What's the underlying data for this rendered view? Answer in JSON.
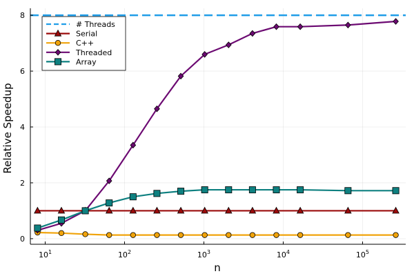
{
  "chart_data": {
    "type": "line",
    "title": "",
    "xlabel": "n",
    "ylabel": "Relative Speedup",
    "xscale": "log10",
    "xlim": [
      6.5,
      350000
    ],
    "ylim": [
      -0.2,
      8.25
    ],
    "xticks": [
      {
        "value": 10,
        "base": "10",
        "exp": "1"
      },
      {
        "value": 100,
        "base": "10",
        "exp": "2"
      },
      {
        "value": 1000,
        "base": "10",
        "exp": "3"
      },
      {
        "value": 10000,
        "base": "10",
        "exp": "4"
      },
      {
        "value": 100000,
        "base": "10",
        "exp": "5"
      }
    ],
    "yticks": [
      0,
      2,
      4,
      6,
      8
    ],
    "grid": true,
    "legend_position": "top-left",
    "threads": {
      "name": "# Threads",
      "value": 8,
      "color": "#1f9de8"
    },
    "series": [
      {
        "name": "Serial",
        "color": "#9b0b0b",
        "marker": "triangle",
        "x": [
          8,
          16,
          32,
          64,
          128,
          256,
          512,
          1024,
          2048,
          4096,
          8192,
          16384,
          65536,
          262144
        ],
        "values": [
          1,
          1,
          1,
          1,
          1,
          1,
          1,
          1,
          1,
          1,
          1,
          1,
          1,
          1
        ]
      },
      {
        "name": "C++",
        "color": "#f0a30a",
        "marker": "circle",
        "x": [
          8,
          16,
          32,
          64,
          128,
          256,
          512,
          1024,
          2048,
          4096,
          8192,
          16384,
          65536,
          262144
        ],
        "values": [
          0.22,
          0.2,
          0.16,
          0.13,
          0.13,
          0.13,
          0.13,
          0.13,
          0.13,
          0.13,
          0.13,
          0.13,
          0.13,
          0.13
        ]
      },
      {
        "name": "Threaded",
        "color": "#6c0a72",
        "marker": "diamond",
        "x": [
          8,
          16,
          32,
          64,
          128,
          256,
          512,
          1024,
          2048,
          4096,
          8192,
          16384,
          65536,
          262144
        ],
        "values": [
          0.3,
          0.55,
          1.0,
          2.07,
          3.35,
          4.65,
          5.82,
          6.6,
          6.94,
          7.35,
          7.59,
          7.59,
          7.65,
          7.78
        ]
      },
      {
        "name": "Array",
        "color": "#0e8080",
        "marker": "square",
        "x": [
          8,
          16,
          32,
          64,
          128,
          256,
          512,
          1024,
          2048,
          4096,
          8192,
          16384,
          65536,
          262144
        ],
        "values": [
          0.38,
          0.67,
          1.0,
          1.28,
          1.5,
          1.62,
          1.7,
          1.75,
          1.75,
          1.75,
          1.75,
          1.75,
          1.72,
          1.72
        ]
      }
    ]
  }
}
